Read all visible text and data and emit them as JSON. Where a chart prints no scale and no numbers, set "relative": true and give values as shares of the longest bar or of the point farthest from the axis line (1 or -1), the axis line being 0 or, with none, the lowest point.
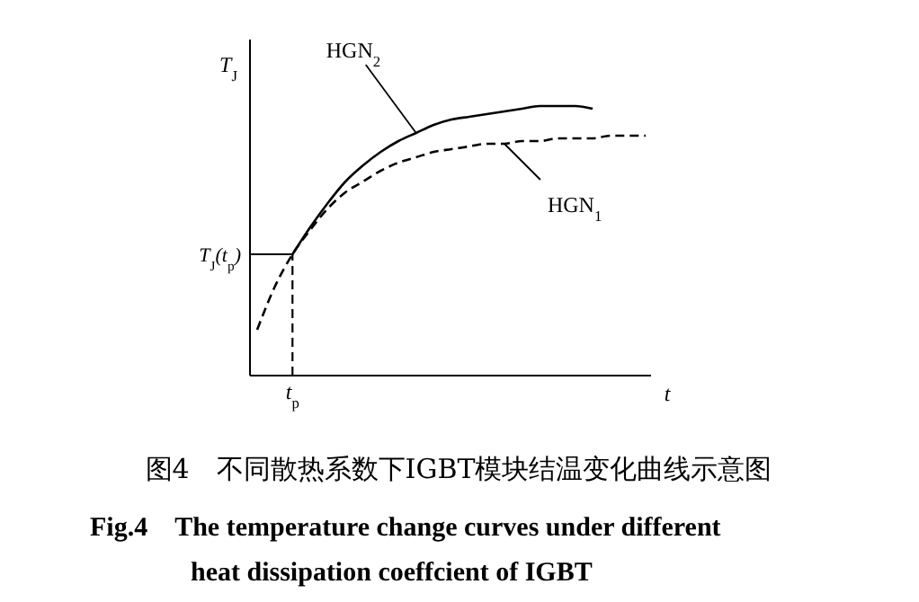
{
  "chart_data": {
    "type": "line",
    "relative": true,
    "title": "图4　不同散热系数下IGBT模块结温变化曲线示意图",
    "subtitle": "Fig.4　The temperature change curves under different heat dissipation coeffcient of IGBT",
    "xlabel": "t",
    "ylabel": "T$_{J}$",
    "categories": [
      null,
      null,
      null,
      null,
      null,
      null,
      null,
      null,
      null,
      null,
      null,
      null,
      null,
      null,
      null,
      null,
      null,
      null,
      null,
      null,
      null,
      null,
      null
    ],
    "series": [
      {
        "name": "HGN$_{2}$",
        "color": "#000000",
        "line_style": "solid",
        "values": [
          null,
          null,
          0.45,
          0.55,
          0.64,
          0.72,
          0.78,
          0.83,
          0.87,
          0.9,
          0.93,
          0.95,
          0.96,
          0.97,
          0.98,
          0.99,
          1,
          1,
          1,
          0.99,
          null,
          null,
          null
        ]
      },
      {
        "name": "HGN$_{1}$",
        "color": "#000000",
        "line_style": "dashed",
        "values": [
          0.17,
          0.33,
          0.45,
          0.54,
          0.62,
          0.68,
          0.72,
          0.76,
          0.79,
          0.81,
          0.83,
          0.84,
          0.85,
          0.86,
          0.86,
          0.87,
          0.87,
          0.88,
          0.88,
          0.88,
          0.89,
          0.89,
          0.89
        ]
      }
    ],
    "ref_lines": [
      {
        "axis": "x",
        "value": "t$_{p}$",
        "line_style": "dashed"
      },
      {
        "axis": "y",
        "value": 0.45,
        "label": "T$_{J}$(t$_{p}$)",
        "line_style": "solid"
      }
    ]
  }
}
